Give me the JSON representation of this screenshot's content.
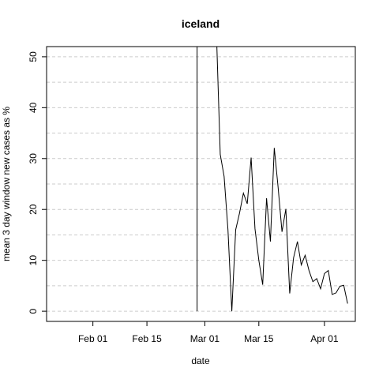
{
  "chart_data": {
    "type": "line",
    "title": "iceland",
    "xlabel": "date",
    "ylabel": "mean  3  day window new cases as %",
    "xlim": [
      "2020-01-20",
      "2020-04-09"
    ],
    "ylim": [
      -2,
      52
    ],
    "x_ticks": [
      {
        "date": "2020-02-01",
        "label": "Feb 01"
      },
      {
        "date": "2020-02-15",
        "label": "Feb 15"
      },
      {
        "date": "2020-03-01",
        "label": "Mar 01"
      },
      {
        "date": "2020-03-15",
        "label": "Mar 15"
      },
      {
        "date": "2020-04-01",
        "label": "Apr 01"
      }
    ],
    "y_ticks": [
      0,
      10,
      20,
      30,
      40,
      50
    ],
    "grid": "horizontal dashed",
    "line_color": "#000000",
    "series": [
      {
        "x": [
          "2020-02-28",
          "2020-02-28",
          "2020-03-04",
          "2020-03-05",
          "2020-03-06",
          "2020-03-07",
          "2020-03-08",
          "2020-03-09",
          "2020-03-10",
          "2020-03-11",
          "2020-03-12",
          "2020-03-13",
          "2020-03-14",
          "2020-03-15",
          "2020-03-16",
          "2020-03-17",
          "2020-03-18",
          "2020-03-19",
          "2020-03-20",
          "2020-03-21",
          "2020-03-22",
          "2020-03-23",
          "2020-03-24",
          "2020-03-25",
          "2020-03-26",
          "2020-03-27",
          "2020-03-28",
          "2020-03-29",
          "2020-03-30",
          "2020-03-31",
          "2020-04-01",
          "2020-04-02",
          "2020-04-03",
          "2020-04-04",
          "2020-04-05",
          "2020-04-06",
          "2020-04-07"
        ],
        "y": [
          0,
          55,
          55,
          30.8,
          26.5,
          16,
          0,
          16,
          19.3,
          23.2,
          21.1,
          30.2,
          16.2,
          10,
          5.2,
          22.2,
          13.7,
          32.1,
          24.3,
          15.6,
          20.1,
          3.5,
          10.5,
          13.7,
          9.1,
          11.0,
          8.0,
          5.8,
          6.4,
          4.4,
          7.4,
          8.0,
          3.3,
          3.6,
          4.9,
          5.1,
          1.5
        ]
      }
    ]
  }
}
